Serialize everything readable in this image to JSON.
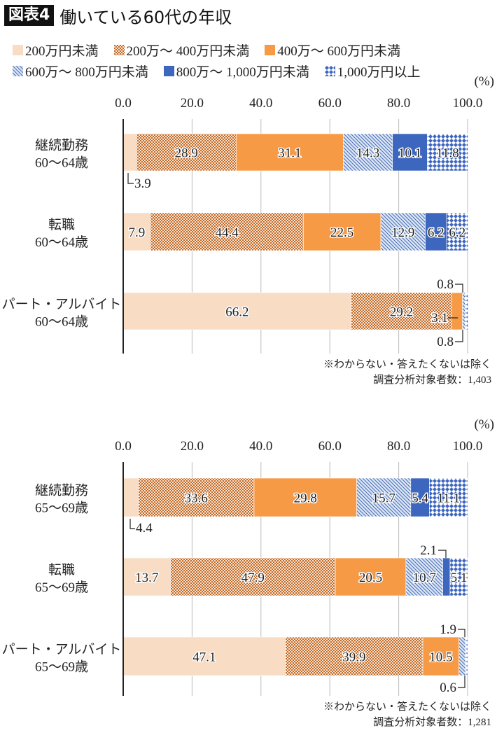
{
  "header": {
    "badge": "図表4",
    "title": "働いている60代の年収"
  },
  "colors": {
    "cat0": "#f8dcc4",
    "cat1_bg": "#fbe4cf",
    "cat1_fg": "#c0692a",
    "cat2": "#f79a46",
    "cat3_bg": "#dde7f6",
    "cat3_fg": "#4a6fb5",
    "cat4": "#3d66bf",
    "cat5_bg": "#ffffff",
    "cat5_fg": "#3d66bf",
    "axis": "#222222",
    "grid": "#bbbbbb"
  },
  "chart_data": [
    {
      "type": "bar",
      "orientation": "horizontal",
      "stacked": true,
      "title": "働いている60代の年収",
      "unit_label": "(%)",
      "xlim": [
        0,
        100
      ],
      "x_ticks": [
        "0.0",
        "20.0",
        "40.0",
        "60.0",
        "80.0",
        "100.0"
      ],
      "grid": true,
      "legend_position": "top",
      "legend": [
        "200万円未満",
        "200万～ 400万円未満",
        "400万～ 600万円未満",
        "600万～ 800万円未満",
        "800万～ 1,000万円未満",
        "1,000万円以上"
      ],
      "categories": [
        [
          "継続勤務",
          "60～64歳"
        ],
        [
          "転職",
          "60～64歳"
        ],
        [
          "パート・アルバイト",
          "60～64歳"
        ]
      ],
      "series": [
        {
          "name": "200万円未満",
          "values": [
            3.9,
            7.9,
            66.2
          ]
        },
        {
          "name": "200万～ 400万円未満",
          "values": [
            28.9,
            44.4,
            29.2
          ]
        },
        {
          "name": "400万～ 600万円未満",
          "values": [
            31.1,
            22.5,
            3.1
          ]
        },
        {
          "name": "600万～ 800万円未満",
          "values": [
            14.3,
            12.9,
            0.8
          ]
        },
        {
          "name": "800万～ 1,000万円未満",
          "values": [
            10.1,
            6.2,
            0.0
          ]
        },
        {
          "name": "1,000万円以上",
          "values": [
            11.8,
            6.2,
            0.8
          ]
        }
      ],
      "annotations": [
        "3.9",
        "0.8",
        "3.1",
        "0.8"
      ],
      "notes": [
        "※わからない・答えたくないは除く",
        "調査分析対象者数：1,403"
      ]
    },
    {
      "type": "bar",
      "orientation": "horizontal",
      "stacked": true,
      "unit_label": "(%)",
      "xlim": [
        0,
        100
      ],
      "x_ticks": [
        "0.0",
        "20.0",
        "40.0",
        "60.0",
        "80.0",
        "100.0"
      ],
      "grid": true,
      "categories": [
        [
          "継続勤務",
          "65～69歳"
        ],
        [
          "転職",
          "65～69歳"
        ],
        [
          "パート・アルバイト",
          "65～69歳"
        ]
      ],
      "series": [
        {
          "name": "200万円未満",
          "values": [
            4.4,
            13.7,
            47.1
          ]
        },
        {
          "name": "200万～ 400万円未満",
          "values": [
            33.6,
            47.9,
            39.9
          ]
        },
        {
          "name": "400万～ 600万円未満",
          "values": [
            29.8,
            20.5,
            10.5
          ]
        },
        {
          "name": "600万～ 800万円未満",
          "values": [
            15.7,
            10.7,
            1.9
          ]
        },
        {
          "name": "800万～ 1,000万円未満",
          "values": [
            5.4,
            2.1,
            0.0
          ]
        },
        {
          "name": "1,000万円以上",
          "values": [
            11.1,
            5.1,
            0.6
          ]
        }
      ],
      "annotations": [
        "4.4",
        "2.1",
        "1.9",
        "0.6"
      ],
      "notes": [
        "※わからない・答えたくないは除く",
        "調査分析対象者数：1,281"
      ]
    }
  ]
}
